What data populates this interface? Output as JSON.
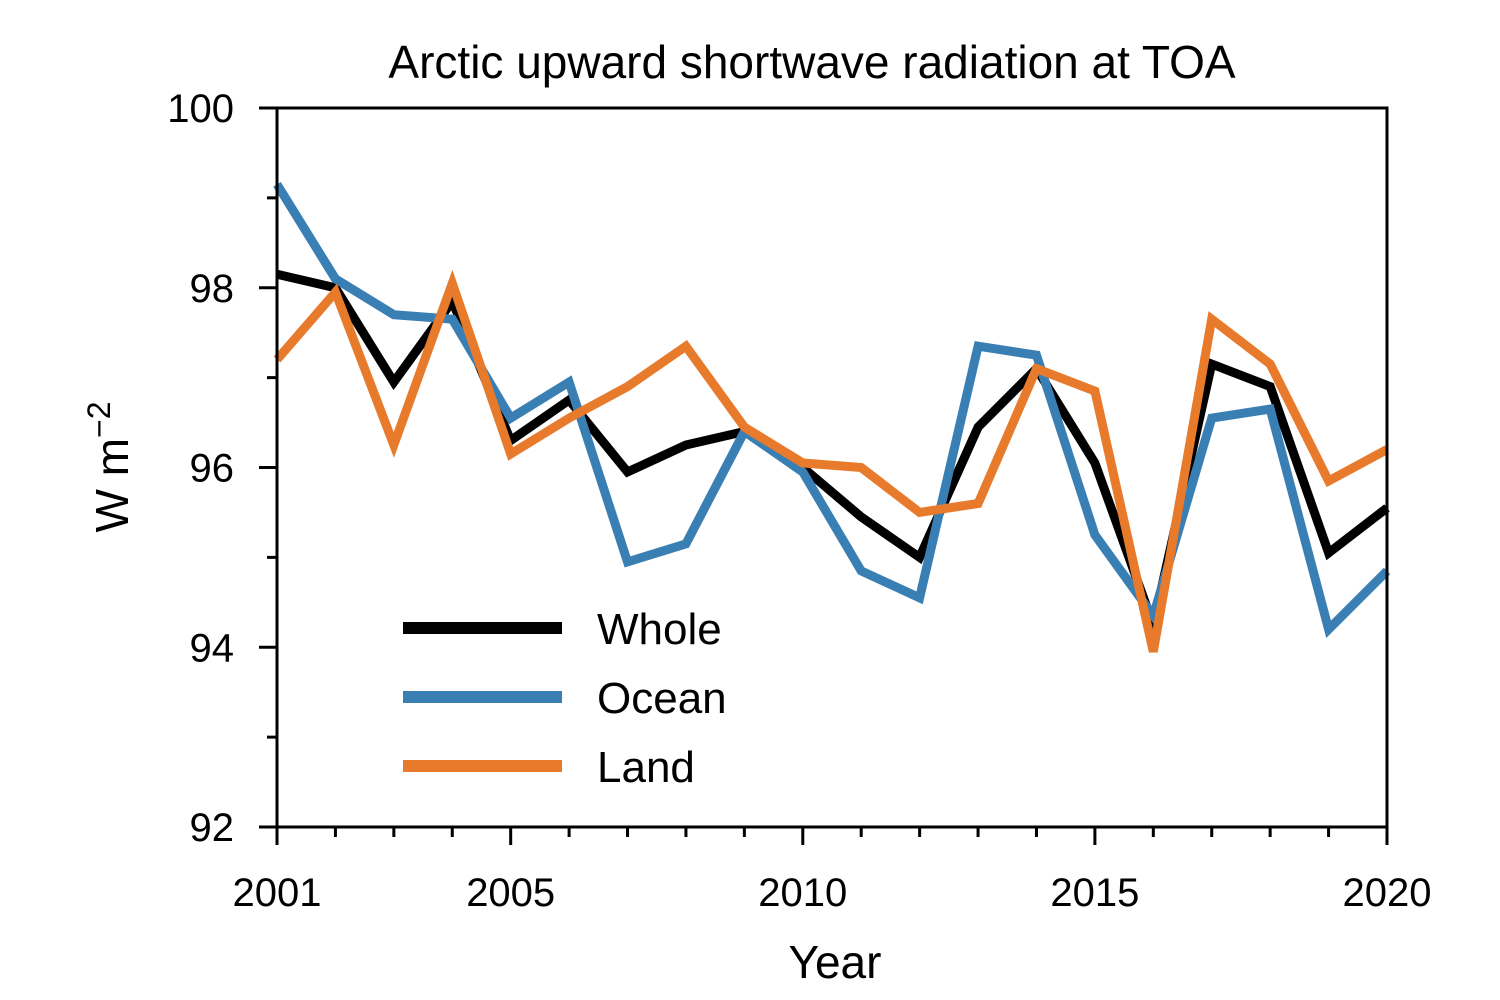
{
  "chart_data": {
    "type": "line",
    "title": "Arctic upward shortwave radiation at TOA",
    "xlabel": "Year",
    "ylabel": "W m",
    "ylabel_superscript": "−2",
    "xlim": [
      2001,
      2020
    ],
    "ylim": [
      92,
      100
    ],
    "x_major_ticks": [
      2001,
      2005,
      2010,
      2015,
      2020
    ],
    "y_major_ticks": [
      92,
      94,
      96,
      98,
      100
    ],
    "x_minor_step": 1,
    "y_minor_step": 1,
    "grid": false,
    "legend_position": "bottom-left",
    "x": [
      2001,
      2002,
      2003,
      2004,
      2005,
      2006,
      2007,
      2008,
      2009,
      2010,
      2011,
      2012,
      2013,
      2014,
      2015,
      2016,
      2017,
      2018,
      2019,
      2020
    ],
    "series": [
      {
        "name": "Whole",
        "color": "#000000",
        "values": [
          98.15,
          98.0,
          96.95,
          97.85,
          96.3,
          96.75,
          95.95,
          96.25,
          96.4,
          96.0,
          95.45,
          95.0,
          96.45,
          97.1,
          96.05,
          94.25,
          97.15,
          96.9,
          95.05,
          95.55
        ]
      },
      {
        "name": "Ocean",
        "color": "#3a7fb4",
        "values": [
          99.15,
          98.1,
          97.7,
          97.65,
          96.55,
          96.95,
          94.95,
          95.15,
          96.4,
          95.95,
          94.85,
          94.55,
          97.35,
          97.25,
          95.25,
          94.35,
          96.55,
          96.65,
          94.2,
          94.85
        ]
      },
      {
        "name": "Land",
        "color": "#e87a2c",
        "values": [
          97.2,
          97.95,
          96.25,
          98.05,
          96.15,
          96.55,
          96.9,
          97.35,
          96.45,
          96.05,
          96.0,
          95.5,
          95.6,
          97.1,
          96.85,
          93.95,
          97.65,
          97.15,
          95.85,
          96.2
        ]
      }
    ]
  }
}
